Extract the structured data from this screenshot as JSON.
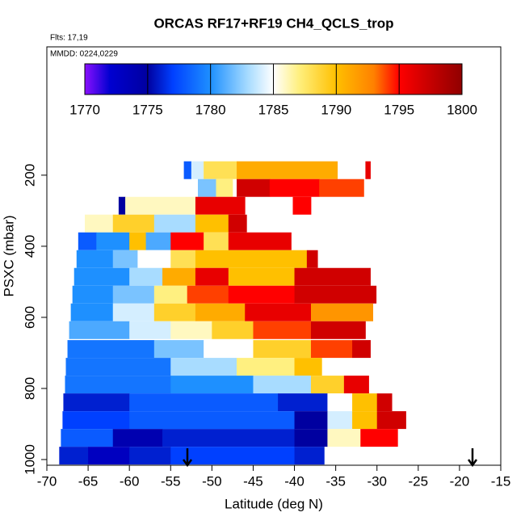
{
  "chart_data": {
    "type": "heatmap",
    "title": "ORCAS RF17+RF19 CH4_QCLS_trop",
    "flights": "Flts: 17,19",
    "dates": "MMDD: 0224,0229",
    "x_label": "Latitude (deg N)",
    "y_label": "PSXC (mbar)",
    "xlim": [
      -70,
      -15
    ],
    "xticks": [
      -70,
      -65,
      -60,
      -55,
      -50,
      -45,
      -40,
      -35,
      -30,
      -25,
      -20,
      -15
    ],
    "ylim": [
      1016,
      -161
    ],
    "yticks": [
      200,
      400,
      600,
      800,
      1000
    ],
    "colorbar_ticks": [
      1770,
      1775,
      1780,
      1785,
      1790,
      1795,
      1800
    ],
    "colormap": [
      [
        1770,
        "#8a10ff"
      ],
      [
        1772,
        "#0000d0"
      ],
      [
        1775,
        "#0000a0"
      ],
      [
        1777,
        "#0040ff"
      ],
      [
        1780,
        "#1e90ff"
      ],
      [
        1783,
        "#a8dcff"
      ],
      [
        1785,
        "#ffffff"
      ],
      [
        1787,
        "#fff080"
      ],
      [
        1790,
        "#ffc000"
      ],
      [
        1793,
        "#ff8000"
      ],
      [
        1795,
        "#ff0000"
      ],
      [
        1797,
        "#d00000"
      ],
      [
        1800,
        "#900000"
      ]
    ],
    "rows": [
      {
        "pressure": 186,
        "segments": [
          [
            -53.4,
            -52.5,
            1778
          ],
          [
            -52.5,
            -51,
            1784
          ],
          [
            -51,
            -47,
            1788
          ],
          [
            -47,
            -34.8,
            1791
          ],
          [
            -31.4,
            -30.8,
            1796
          ]
        ]
      },
      {
        "pressure": 236,
        "segments": [
          [
            -51.7,
            -49.5,
            1782
          ],
          [
            -49.5,
            -47.5,
            1787
          ],
          [
            -47,
            -43,
            1797
          ],
          [
            -43,
            -37,
            1795
          ],
          [
            -37,
            -31.6,
            1794
          ]
        ]
      },
      {
        "pressure": 286,
        "segments": [
          [
            -61.3,
            -60.5,
            1775
          ],
          [
            -60.5,
            -52,
            1786
          ],
          [
            -52,
            -46,
            1796
          ],
          [
            -40.2,
            -38,
            1795
          ]
        ]
      },
      {
        "pressure": 336,
        "segments": [
          [
            -65.4,
            -62,
            1786
          ],
          [
            -62,
            -57,
            1789
          ],
          [
            -57,
            -52,
            1783
          ],
          [
            -52,
            -48,
            1790
          ],
          [
            -48,
            -45.8,
            1797
          ]
        ]
      },
      {
        "pressure": 386,
        "segments": [
          [
            -66.2,
            -64,
            1778
          ],
          [
            -64,
            -60,
            1780
          ],
          [
            -60,
            -58,
            1790
          ],
          [
            -58,
            -55,
            1781
          ],
          [
            -55,
            -51,
            1795
          ],
          [
            -51,
            -48,
            1788
          ],
          [
            -48,
            -40.4,
            1796
          ]
        ]
      },
      {
        "pressure": 436,
        "segments": [
          [
            -66.4,
            -62,
            1780
          ],
          [
            -62,
            -59,
            1782
          ],
          [
            -59,
            -55,
            1785
          ],
          [
            -55,
            -52,
            1788
          ],
          [
            -52,
            -38.5,
            1790
          ],
          [
            -38.5,
            -37.2,
            1797
          ]
        ]
      },
      {
        "pressure": 486,
        "segments": [
          [
            -66.7,
            -60,
            1780
          ],
          [
            -60,
            -56,
            1783
          ],
          [
            -56,
            -52,
            1791
          ],
          [
            -52,
            -48,
            1796
          ],
          [
            -48,
            -40,
            1790
          ],
          [
            -40,
            -30.8,
            1797
          ]
        ]
      },
      {
        "pressure": 536,
        "segments": [
          [
            -66.9,
            -62,
            1780
          ],
          [
            -62,
            -57,
            1782
          ],
          [
            -57,
            -53,
            1787
          ],
          [
            -53,
            -48,
            1794
          ],
          [
            -48,
            -40,
            1795
          ],
          [
            -40,
            -30.1,
            1797
          ]
        ]
      },
      {
        "pressure": 586,
        "segments": [
          [
            -67.1,
            -62,
            1780
          ],
          [
            -62,
            -57,
            1784
          ],
          [
            -57,
            -52,
            1789
          ],
          [
            -52,
            -46,
            1791
          ],
          [
            -46,
            -38,
            1796
          ],
          [
            -38,
            -30.5,
            1792
          ]
        ]
      },
      {
        "pressure": 636,
        "segments": [
          [
            -67.3,
            -60,
            1781
          ],
          [
            -60,
            -55,
            1784
          ],
          [
            -55,
            -50,
            1786
          ],
          [
            -50,
            -45,
            1789
          ],
          [
            -45,
            -38,
            1794
          ],
          [
            -38,
            -31.4,
            1797
          ]
        ]
      },
      {
        "pressure": 689,
        "segments": [
          [
            -67.5,
            -57,
            1779
          ],
          [
            -57,
            -51,
            1782
          ],
          [
            -51,
            -45,
            1785
          ],
          [
            -45,
            -38,
            1789
          ],
          [
            -38,
            -33,
            1794
          ],
          [
            -33,
            -30.8,
            1797
          ]
        ]
      },
      {
        "pressure": 739,
        "segments": [
          [
            -67.7,
            -55,
            1779
          ],
          [
            -55,
            -47,
            1783
          ],
          [
            -47,
            -40,
            1787
          ],
          [
            -40,
            -36.7,
            1790
          ]
        ]
      },
      {
        "pressure": 789,
        "segments": [
          [
            -67.8,
            -55,
            1779
          ],
          [
            -55,
            -45,
            1780
          ],
          [
            -45,
            -38,
            1783
          ],
          [
            -38,
            -34,
            1789
          ],
          [
            -34,
            -31,
            1796
          ]
        ]
      },
      {
        "pressure": 839,
        "segments": [
          [
            -68,
            -60,
            1776
          ],
          [
            -60,
            -42,
            1778
          ],
          [
            -42,
            -36,
            1776
          ],
          [
            -36,
            -33,
            1785
          ],
          [
            -33,
            -30,
            1790
          ],
          [
            -30,
            -28.2,
            1797
          ]
        ]
      },
      {
        "pressure": 889,
        "segments": [
          [
            -68.1,
            -60,
            1777
          ],
          [
            -60,
            -40,
            1778
          ],
          [
            -40,
            -36,
            1775
          ],
          [
            -36,
            -33,
            1784
          ],
          [
            -33,
            -30,
            1790
          ],
          [
            -30,
            -26.5,
            1797
          ]
        ]
      },
      {
        "pressure": 939,
        "segments": [
          [
            -68.3,
            -62,
            1778
          ],
          [
            -62,
            -56,
            1774
          ],
          [
            -56,
            -40,
            1776
          ],
          [
            -40,
            -36,
            1775
          ],
          [
            -36,
            -32,
            1786
          ],
          [
            -32,
            -27.5,
            1795
          ]
        ]
      },
      {
        "pressure": 989,
        "segments": [
          [
            -68.5,
            -65,
            1776
          ],
          [
            -65,
            -60,
            1773
          ],
          [
            -60,
            -55,
            1776
          ],
          [
            -55,
            -40,
            1777
          ],
          [
            -40,
            -36.4,
            1776
          ]
        ]
      }
    ]
  }
}
